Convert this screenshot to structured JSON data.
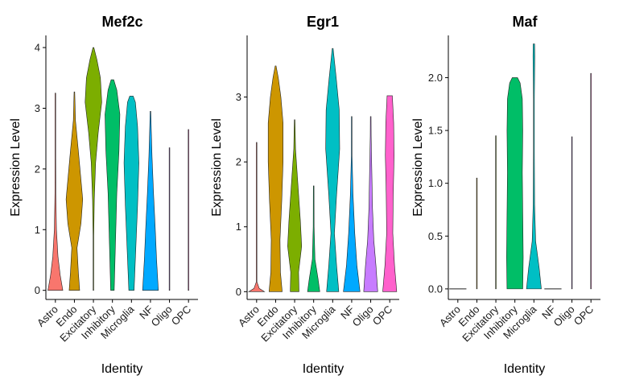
{
  "chart_data": {
    "type": "violin",
    "xlabel": "Identity",
    "ylabel": "Expression Level",
    "categories": [
      "Astro",
      "Endo",
      "Excitatory",
      "Inhibitory",
      "Microglia",
      "NF",
      "Oligo",
      "OPC"
    ],
    "colors": [
      "#F8766D",
      "#CD9600",
      "#7CAE00",
      "#00BE67",
      "#00BFC4",
      "#00A9FF",
      "#C77CFF",
      "#FF61CC"
    ],
    "panels": [
      {
        "title": "Mef2c",
        "ylim": [
          -0.15,
          4.2
        ],
        "yticks": [
          0,
          1,
          2,
          3,
          4
        ],
        "violins": [
          {
            "max": 3.25,
            "width": [
              [
                0,
                0.85
              ],
              [
                0.25,
                0.55
              ],
              [
                0.55,
                0.3
              ],
              [
                1,
                0.12
              ],
              [
                1.6,
                0.05
              ],
              [
                2.2,
                0.03
              ],
              [
                3.25,
                0.01
              ]
            ]
          },
          {
            "max": 3.27,
            "width": [
              [
                0,
                0.6
              ],
              [
                0.3,
                0.45
              ],
              [
                0.7,
                0.3
              ],
              [
                1.1,
                0.75
              ],
              [
                1.5,
                0.95
              ],
              [
                1.9,
                0.7
              ],
              [
                2.3,
                0.45
              ],
              [
                2.8,
                0.12
              ],
              [
                3.27,
                0.02
              ]
            ]
          },
          {
            "max": 4.0,
            "width": [
              [
                0,
                0.01
              ],
              [
                0.9,
                0.04
              ],
              [
                1.5,
                0.1
              ],
              [
                2.1,
                0.25
              ],
              [
                2.6,
                0.55
              ],
              [
                3.1,
                0.95
              ],
              [
                3.5,
                0.8
              ],
              [
                3.8,
                0.4
              ],
              [
                4.0,
                0.05
              ]
            ]
          },
          {
            "max": 3.47,
            "width": [
              [
                0,
                0.2
              ],
              [
                0.8,
                0.35
              ],
              [
                1.6,
                0.5
              ],
              [
                2.3,
                0.75
              ],
              [
                2.9,
                0.85
              ],
              [
                3.3,
                0.5
              ],
              [
                3.47,
                0.15
              ]
            ]
          },
          {
            "max": 3.2,
            "width": [
              [
                0,
                0.3
              ],
              [
                0.7,
                0.5
              ],
              [
                1.4,
                0.7
              ],
              [
                2.1,
                0.85
              ],
              [
                2.7,
                0.7
              ],
              [
                3.1,
                0.45
              ],
              [
                3.2,
                0.2
              ]
            ]
          },
          {
            "max": 2.95,
            "width": [
              [
                0,
                0.9
              ],
              [
                0.5,
                0.7
              ],
              [
                1.0,
                0.55
              ],
              [
                1.6,
                0.35
              ],
              [
                2.2,
                0.18
              ],
              [
                2.7,
                0.08
              ],
              [
                2.95,
                0.02
              ]
            ]
          },
          {
            "max": 2.35,
            "width": [
              [
                0,
                0.02
              ],
              [
                1,
                0.01
              ],
              [
                2.35,
                0.005
              ]
            ]
          },
          {
            "max": 2.65,
            "width": [
              [
                0,
                0.01
              ],
              [
                1.4,
                0.005
              ],
              [
                2.65,
                0.003
              ]
            ]
          }
        ]
      },
      {
        "title": "Egr1",
        "ylim": [
          -0.12,
          3.95
        ],
        "yticks": [
          0,
          1,
          2,
          3
        ],
        "violins": [
          {
            "max": 2.3,
            "width": [
              [
                0,
                0.9
              ],
              [
                0.05,
                0.3
              ],
              [
                0.15,
                0.03
              ],
              [
                1.65,
                0.03
              ],
              [
                2.3,
                0.005
              ]
            ]
          },
          {
            "max": 3.48,
            "width": [
              [
                0,
                0.75
              ],
              [
                0.3,
                0.55
              ],
              [
                0.8,
                0.5
              ],
              [
                1.4,
                0.7
              ],
              [
                2.0,
                0.85
              ],
              [
                2.6,
                0.85
              ],
              [
                3.0,
                0.6
              ],
              [
                3.3,
                0.3
              ],
              [
                3.48,
                0.05
              ]
            ]
          },
          {
            "max": 2.65,
            "width": [
              [
                0,
                0.5
              ],
              [
                0.3,
                0.45
              ],
              [
                0.7,
                0.8
              ],
              [
                1.1,
                0.65
              ],
              [
                1.6,
                0.4
              ],
              [
                2.2,
                0.1
              ],
              [
                2.65,
                0.02
              ]
            ]
          },
          {
            "max": 1.63,
            "width": [
              [
                0,
                0.7
              ],
              [
                0.2,
                0.5
              ],
              [
                0.5,
                0.15
              ],
              [
                1.0,
                0.05
              ],
              [
                1.63,
                0.02
              ]
            ]
          },
          {
            "max": 3.75,
            "width": [
              [
                0,
                0.7
              ],
              [
                0.4,
                0.45
              ],
              [
                0.9,
                0.2
              ],
              [
                1.5,
                0.45
              ],
              [
                2.2,
                0.8
              ],
              [
                2.8,
                0.75
              ],
              [
                3.3,
                0.4
              ],
              [
                3.75,
                0.05
              ]
            ]
          },
          {
            "max": 2.7,
            "width": [
              [
                0,
                0.95
              ],
              [
                0.4,
                0.6
              ],
              [
                0.9,
                0.35
              ],
              [
                1.5,
                0.15
              ],
              [
                2.1,
                0.04
              ],
              [
                2.7,
                0.01
              ]
            ]
          },
          {
            "max": 2.7,
            "width": [
              [
                0,
                0.8
              ],
              [
                0.4,
                0.6
              ],
              [
                0.8,
                0.35
              ],
              [
                1.3,
                0.2
              ],
              [
                1.9,
                0.12
              ],
              [
                2.4,
                0.05
              ],
              [
                2.7,
                0.02
              ]
            ]
          },
          {
            "max": 3.02,
            "width": [
              [
                0,
                0.8
              ],
              [
                0.4,
                0.55
              ],
              [
                0.9,
                0.35
              ],
              [
                1.5,
                0.4
              ],
              [
                2.1,
                0.5
              ],
              [
                2.6,
                0.45
              ],
              [
                3.02,
                0.3
              ]
            ]
          }
        ]
      },
      {
        "title": "Maf",
        "ylim": [
          -0.1,
          2.4
        ],
        "yticks": [
          0.0,
          0.5,
          1.0,
          1.5,
          2.0
        ],
        "violins": [
          {
            "max": 0.0,
            "width": [
              [
                0,
                0.03
              ]
            ]
          },
          {
            "max": 1.05,
            "width": [
              [
                0,
                0.03
              ],
              [
                0.05,
                0.005
              ],
              [
                1.05,
                0.003
              ]
            ]
          },
          {
            "max": 1.45,
            "width": [
              [
                0,
                0.03
              ],
              [
                0.05,
                0.005
              ],
              [
                1.45,
                0.003
              ]
            ]
          },
          {
            "max": 2.0,
            "width": [
              [
                0,
                0.9
              ],
              [
                0.3,
                0.95
              ],
              [
                0.7,
                0.9
              ],
              [
                1.1,
                0.85
              ],
              [
                1.5,
                0.9
              ],
              [
                1.8,
                0.85
              ],
              [
                1.95,
                0.6
              ],
              [
                2.0,
                0.3
              ]
            ]
          },
          {
            "max": 2.32,
            "width": [
              [
                0,
                0.85
              ],
              [
                0.2,
                0.6
              ],
              [
                0.45,
                0.2
              ],
              [
                0.8,
                0.08
              ],
              [
                1.3,
                0.05
              ],
              [
                1.8,
                0.05
              ],
              [
                2.2,
                0.1
              ],
              [
                2.32,
                0.08
              ]
            ]
          },
          {
            "max": 0.0,
            "width": [
              [
                0,
                0.03
              ]
            ]
          },
          {
            "max": 1.44,
            "width": [
              [
                0,
                0.03
              ],
              [
                0.05,
                0.005
              ],
              [
                1.44,
                0.003
              ]
            ]
          },
          {
            "max": 2.04,
            "width": [
              [
                0,
                0.03
              ],
              [
                0.05,
                0.005
              ],
              [
                2.04,
                0.003
              ]
            ]
          }
        ]
      }
    ]
  }
}
